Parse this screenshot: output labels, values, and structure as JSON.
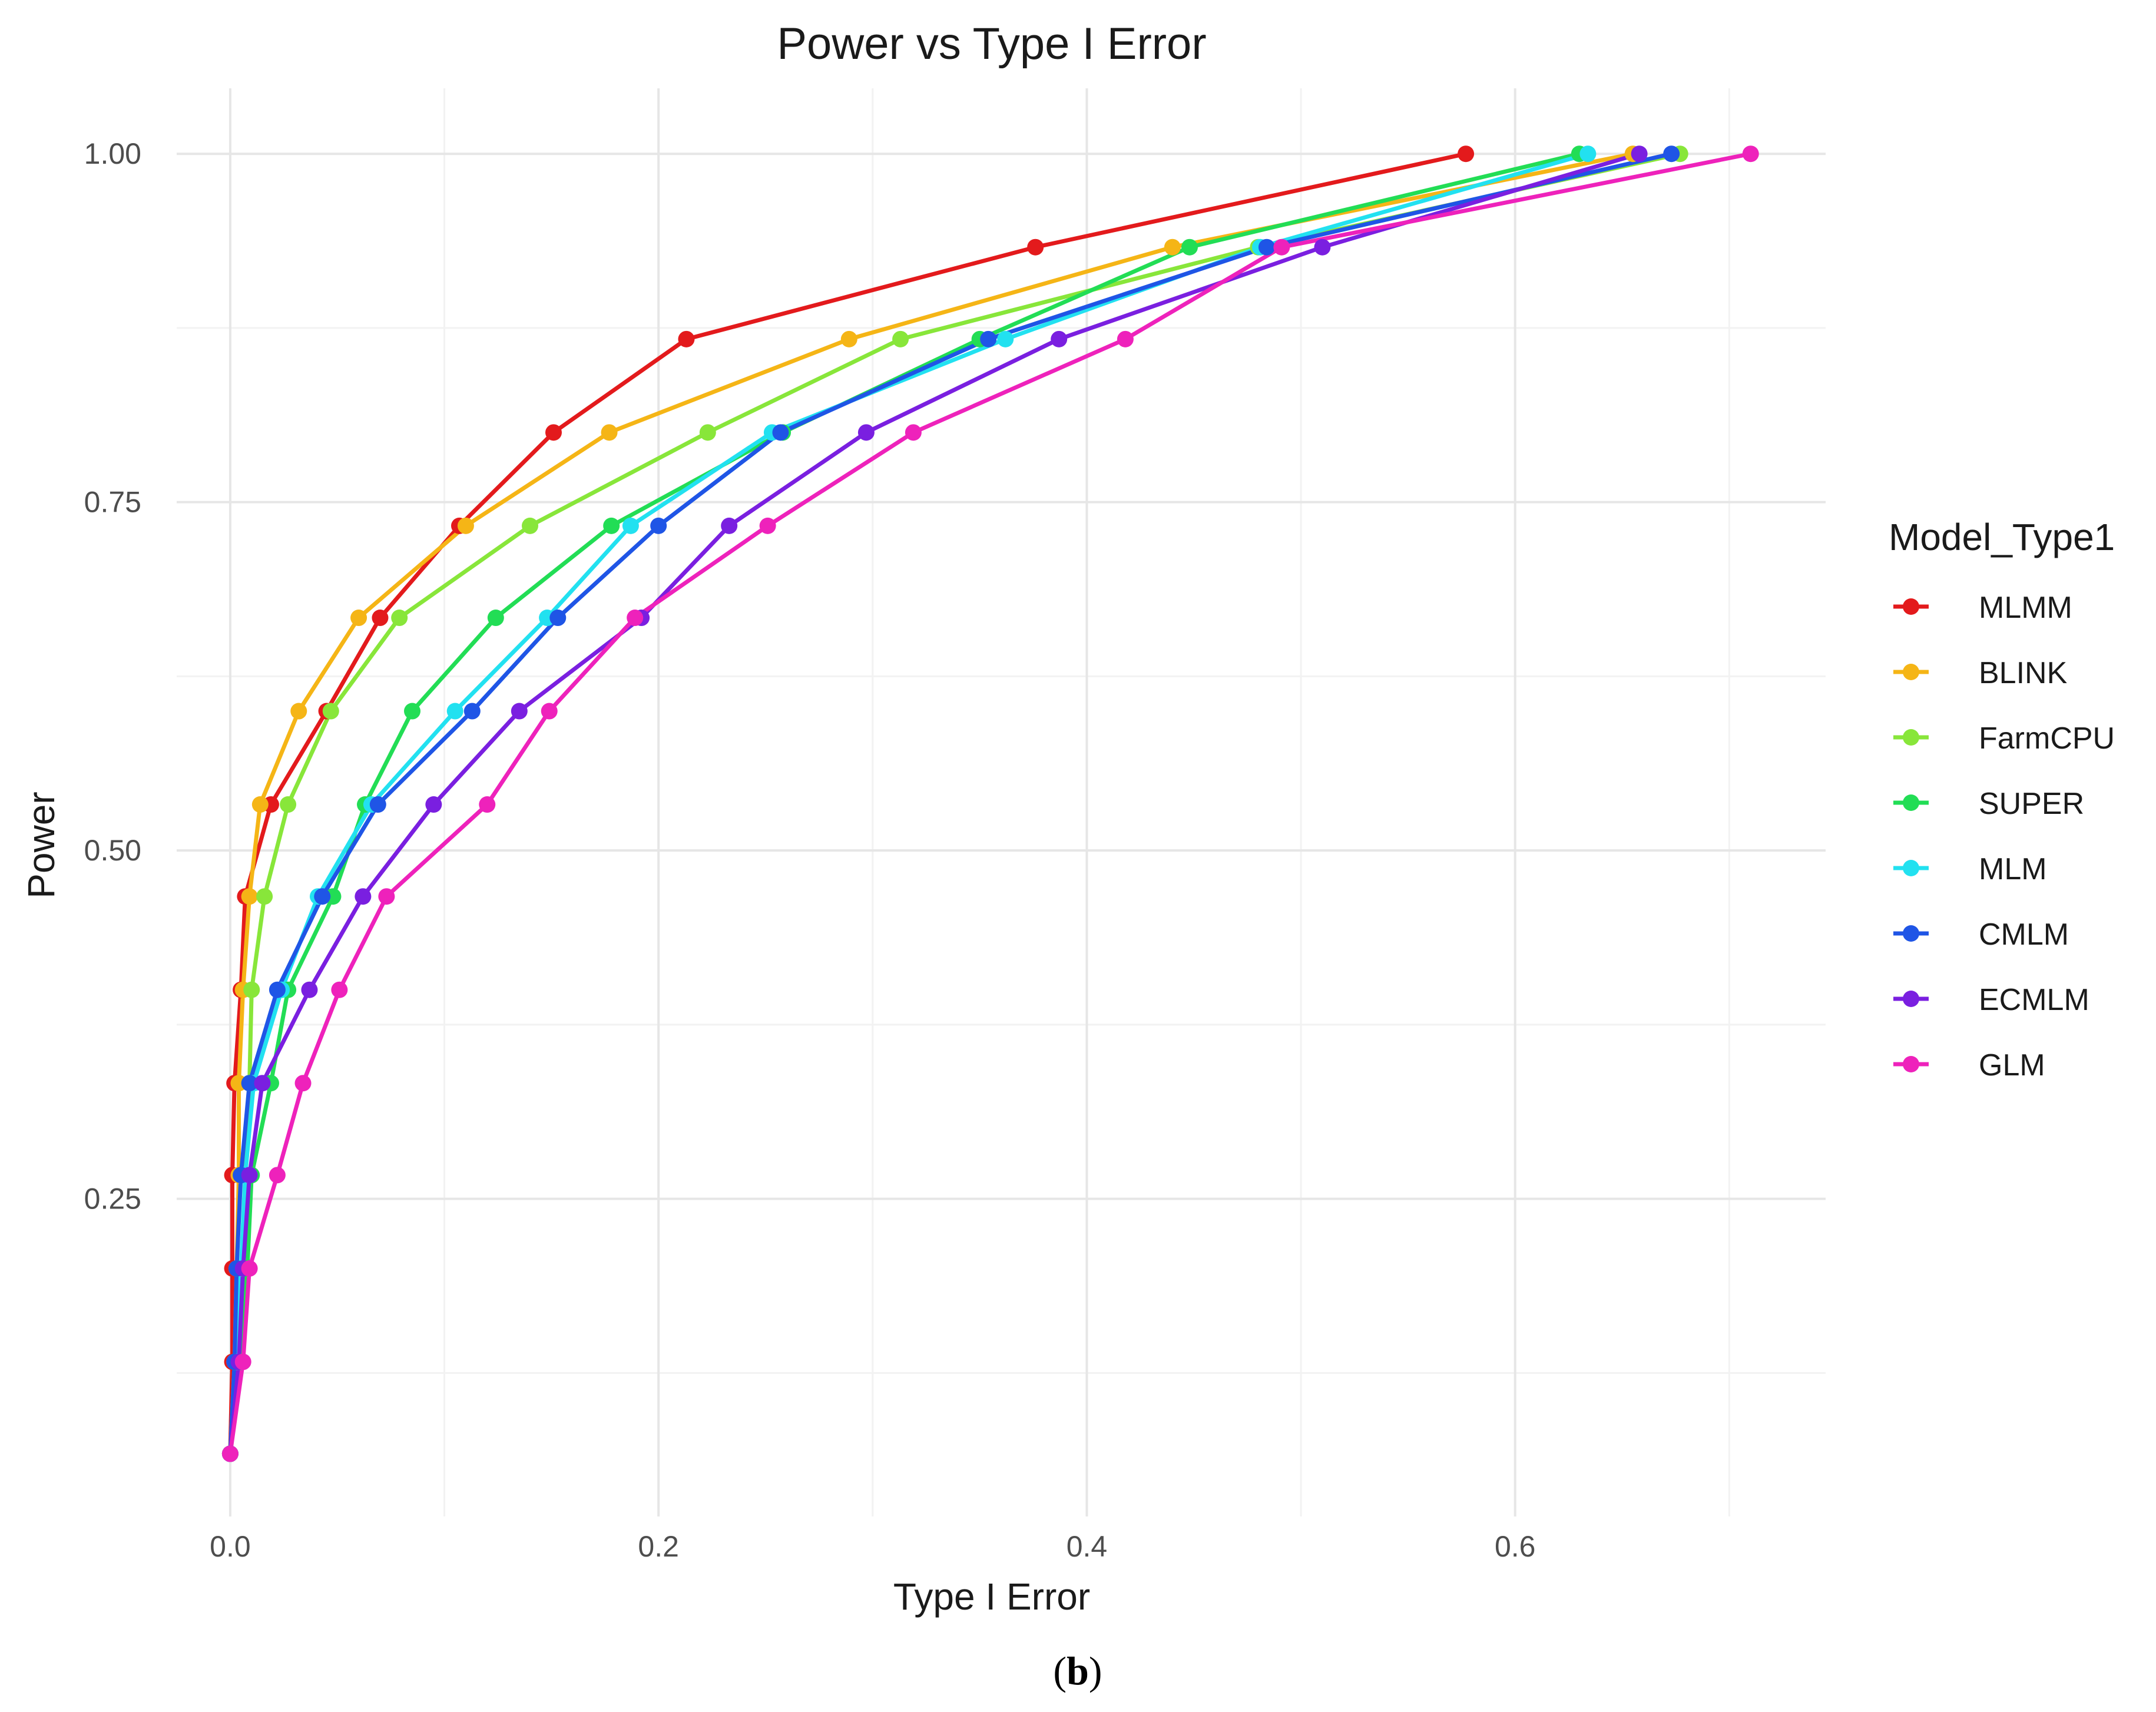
{
  "figure": {
    "caption_open": "(",
    "caption_letter": "b",
    "caption_close": ")"
  },
  "colors": {
    "MLMM": "#e31a1c",
    "BLINK": "#f5b516",
    "FarmCPU": "#88e63a",
    "SUPER": "#22dd55",
    "MLM": "#22e1f0",
    "CMLM": "#1f55e6",
    "ECMLM": "#7a1fe0",
    "GLM": "#ee22bb"
  },
  "chart_data": {
    "type": "line",
    "title": "Power vs Type I Error",
    "xlabel": "Type I Error",
    "ylabel": "Power",
    "legend_title": "Model_Type1",
    "legend_position": "right",
    "grid": true,
    "xlim": [
      -0.025,
      0.745
    ],
    "ylim": [
      0.022,
      1.047
    ],
    "x_ticks": [
      0.0,
      0.2,
      0.4,
      0.6
    ],
    "x_tick_labels": [
      "0.0",
      "0.2",
      "0.4",
      "0.6"
    ],
    "y_ticks": [
      0.25,
      0.5,
      0.75,
      1.0
    ],
    "y_tick_labels": [
      "0.25",
      "0.50",
      "0.75",
      "1.00"
    ],
    "series": [
      {
        "name": "MLMM",
        "x": [
          0.0,
          0.001,
          0.001,
          0.001,
          0.002,
          0.005,
          0.007,
          0.019,
          0.045,
          0.07,
          0.107,
          0.151,
          0.213,
          0.376,
          0.577
        ],
        "y": [
          0.067,
          0.133,
          0.2,
          0.267,
          0.333,
          0.4,
          0.467,
          0.533,
          0.6,
          0.667,
          0.733,
          0.8,
          0.867,
          0.933,
          1.0
        ]
      },
      {
        "name": "BLINK",
        "x": [
          0.0,
          0.002,
          0.003,
          0.004,
          0.004,
          0.006,
          0.009,
          0.014,
          0.032,
          0.06,
          0.11,
          0.177,
          0.289,
          0.44,
          0.655
        ],
        "y": [
          0.067,
          0.133,
          0.2,
          0.267,
          0.333,
          0.4,
          0.467,
          0.533,
          0.6,
          0.667,
          0.733,
          0.8,
          0.867,
          0.933,
          1.0
        ]
      },
      {
        "name": "FarmCPU",
        "x": [
          0.0,
          0.004,
          0.006,
          0.007,
          0.009,
          0.01,
          0.016,
          0.027,
          0.047,
          0.079,
          0.14,
          0.223,
          0.313,
          0.48,
          0.677
        ],
        "y": [
          0.067,
          0.133,
          0.2,
          0.267,
          0.333,
          0.4,
          0.467,
          0.533,
          0.6,
          0.667,
          0.733,
          0.8,
          0.867,
          0.933,
          1.0
        ]
      },
      {
        "name": "SUPER",
        "x": [
          0.0,
          0.005,
          0.008,
          0.01,
          0.019,
          0.027,
          0.048,
          0.063,
          0.085,
          0.124,
          0.178,
          0.258,
          0.35,
          0.448,
          0.63
        ],
        "y": [
          0.067,
          0.133,
          0.2,
          0.267,
          0.333,
          0.4,
          0.467,
          0.533,
          0.6,
          0.667,
          0.733,
          0.8,
          0.867,
          0.933,
          1.0
        ]
      },
      {
        "name": "MLM",
        "x": [
          0.0,
          0.003,
          0.005,
          0.007,
          0.011,
          0.024,
          0.041,
          0.066,
          0.105,
          0.148,
          0.187,
          0.253,
          0.362,
          0.481,
          0.634
        ],
        "y": [
          0.067,
          0.133,
          0.2,
          0.267,
          0.333,
          0.4,
          0.467,
          0.533,
          0.6,
          0.667,
          0.733,
          0.8,
          0.867,
          0.933,
          1.0
        ]
      },
      {
        "name": "CMLM",
        "x": [
          0.0,
          0.002,
          0.003,
          0.005,
          0.009,
          0.022,
          0.043,
          0.069,
          0.113,
          0.153,
          0.2,
          0.257,
          0.354,
          0.484,
          0.673
        ],
        "y": [
          0.067,
          0.133,
          0.2,
          0.267,
          0.333,
          0.4,
          0.467,
          0.533,
          0.6,
          0.667,
          0.733,
          0.8,
          0.867,
          0.933,
          1.0
        ]
      },
      {
        "name": "ECMLM",
        "x": [
          0.0,
          0.004,
          0.006,
          0.009,
          0.015,
          0.037,
          0.062,
          0.095,
          0.135,
          0.192,
          0.233,
          0.297,
          0.387,
          0.51,
          0.658
        ],
        "y": [
          0.067,
          0.133,
          0.2,
          0.267,
          0.333,
          0.4,
          0.467,
          0.533,
          0.6,
          0.667,
          0.733,
          0.8,
          0.867,
          0.933,
          1.0
        ]
      },
      {
        "name": "GLM",
        "x": [
          0.0,
          0.006,
          0.009,
          0.022,
          0.034,
          0.051,
          0.073,
          0.12,
          0.149,
          0.189,
          0.251,
          0.319,
          0.418,
          0.491,
          0.71
        ],
        "y": [
          0.067,
          0.133,
          0.2,
          0.267,
          0.333,
          0.4,
          0.467,
          0.533,
          0.6,
          0.667,
          0.733,
          0.8,
          0.867,
          0.933,
          1.0
        ]
      }
    ]
  }
}
